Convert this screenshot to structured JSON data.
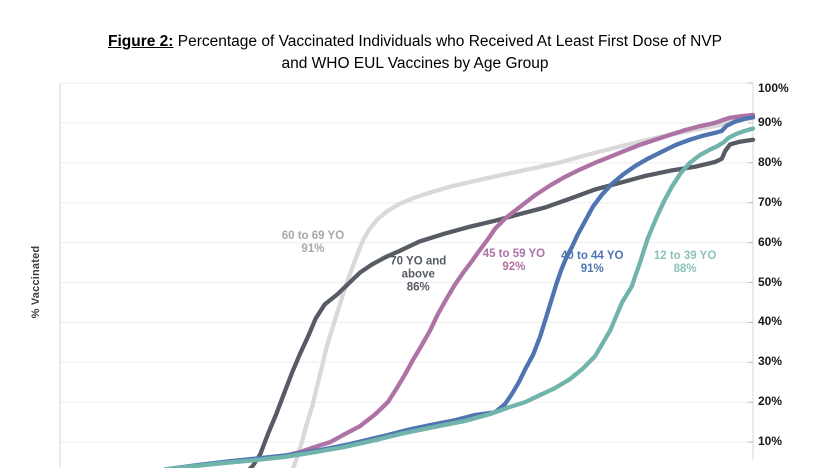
{
  "figure": {
    "label": "Figure 2:",
    "title_rest": " Percentage of Vaccinated Individuals who Received At Least First Dose of NVP",
    "title_line2": "and WHO EUL Vaccines by Age Group"
  },
  "y_axis": {
    "label": "% Vaccinated",
    "ticks": [
      {
        "label": "100%",
        "value": 100
      },
      {
        "label": "90%",
        "value": 90
      },
      {
        "label": "80%",
        "value": 80
      },
      {
        "label": "70%",
        "value": 70
      },
      {
        "label": "60%",
        "value": 60
      },
      {
        "label": "50%",
        "value": 50
      },
      {
        "label": "40%",
        "value": 40
      },
      {
        "label": "30%",
        "value": 30
      },
      {
        "label": "20%",
        "value": 20
      },
      {
        "label": "10%",
        "value": 10
      }
    ]
  },
  "colors": {
    "grid": "#ededed",
    "axis": "#d4d4d4",
    "tick_text": "#17181a",
    "series_70_plus": "#565b64",
    "series_60_69": "#d9d9d9",
    "series_45_59": "#ae72a5",
    "series_40_44": "#4f75b0",
    "series_12_39": "#70b4ab",
    "anno_60_69_text": "#a8a8a8"
  },
  "chart_data": {
    "type": "line",
    "title": "Figure 2: Percentage of Vaccinated Individuals who Received At Least First Dose of NVP and WHO EUL Vaccines by Age Group",
    "xlabel": "",
    "ylabel": "% Vaccinated",
    "ylim": [
      0,
      100
    ],
    "x_unit": "percent of timeline (x-axis labels cropped out of view)",
    "grid": "horizontal only",
    "legend": "inline annotations next to each curve",
    "series": [
      {
        "id": "s60_69",
        "name": "60 to 69 YO",
        "final_value": "91%",
        "color": "#d9d9d9",
        "annotation": {
          "lines": "60 to 69 YO\n91%",
          "x_pct": 36.5,
          "y_val": 60,
          "text_color": "#a8a8a8"
        },
        "points": [
          [
            33.6,
            3.3
          ],
          [
            34.2,
            6
          ],
          [
            34.9,
            10
          ],
          [
            35.6,
            14.5
          ],
          [
            36.4,
            19
          ],
          [
            37.1,
            24
          ],
          [
            37.8,
            29
          ],
          [
            38.5,
            34
          ],
          [
            39.4,
            39
          ],
          [
            40.3,
            44
          ],
          [
            41.1,
            48.5
          ],
          [
            42.0,
            53
          ],
          [
            42.9,
            57
          ],
          [
            43.7,
            60.5
          ],
          [
            44.7,
            63.5
          ],
          [
            45.9,
            66
          ],
          [
            47.3,
            68
          ],
          [
            49.1,
            69.8
          ],
          [
            51.2,
            71.3
          ],
          [
            53.7,
            72.7
          ],
          [
            56.3,
            74
          ],
          [
            59.2,
            75.2
          ],
          [
            62.0,
            76.3
          ],
          [
            65.2,
            77.5
          ],
          [
            68.5,
            78.7
          ],
          [
            71.9,
            80
          ],
          [
            75.0,
            81.5
          ],
          [
            77.9,
            82.8
          ],
          [
            81.1,
            84.2
          ],
          [
            84.4,
            85.6
          ],
          [
            87.6,
            86.9
          ],
          [
            90.9,
            88
          ],
          [
            93.8,
            89
          ],
          [
            95.5,
            89.5
          ],
          [
            96.4,
            90.3
          ],
          [
            98.1,
            90.8
          ],
          [
            100,
            91.2
          ]
        ]
      },
      {
        "id": "s70_plus",
        "name": "70 YO and above",
        "final_value": "86%",
        "color": "#565b64",
        "annotation": {
          "lines": "70 YO and\nabove\n86%",
          "x_pct": 51.7,
          "y_val": 52,
          "text_color": "#565b64"
        },
        "points": [
          [
            27.4,
            3.3
          ],
          [
            27.8,
            4
          ],
          [
            28.9,
            7
          ],
          [
            30.0,
            12
          ],
          [
            31.2,
            17
          ],
          [
            32.3,
            22
          ],
          [
            33.5,
            27.5
          ],
          [
            34.6,
            32
          ],
          [
            35.8,
            36.5
          ],
          [
            36.9,
            41
          ],
          [
            38.2,
            44.5
          ],
          [
            40.0,
            47
          ],
          [
            41.8,
            50
          ],
          [
            43.3,
            52.5
          ],
          [
            45.0,
            54.5
          ],
          [
            46.9,
            56.3
          ],
          [
            49.1,
            58
          ],
          [
            51.9,
            60.3
          ],
          [
            55.6,
            62.3
          ],
          [
            59.2,
            64
          ],
          [
            62.8,
            65.5
          ],
          [
            66.4,
            67.2
          ],
          [
            70.0,
            68.8
          ],
          [
            73.6,
            71
          ],
          [
            77.2,
            73.3
          ],
          [
            80.8,
            75
          ],
          [
            84.4,
            76.7
          ],
          [
            88.0,
            78
          ],
          [
            91.6,
            79
          ],
          [
            94.5,
            80.2
          ],
          [
            95.5,
            81
          ],
          [
            96.0,
            83
          ],
          [
            96.7,
            84.6
          ],
          [
            98.1,
            85.3
          ],
          [
            100,
            85.8
          ]
        ]
      },
      {
        "id": "s45_59",
        "name": "45 to 59 YO",
        "final_value": "92%",
        "color": "#ae72a5",
        "annotation": {
          "lines": "45 to 59 YO\n92%",
          "x_pct": 65.5,
          "y_val": 55.5,
          "text_color": "#ae72a5"
        },
        "points": [
          [
            16.6,
            3.5
          ],
          [
            20.2,
            4.2
          ],
          [
            23.8,
            4.8
          ],
          [
            27.4,
            5.4
          ],
          [
            30.3,
            6
          ],
          [
            32.5,
            6.6
          ],
          [
            34.6,
            7.5
          ],
          [
            36.8,
            8.8
          ],
          [
            39.0,
            10
          ],
          [
            41.1,
            12
          ],
          [
            43.3,
            14
          ],
          [
            45.5,
            17
          ],
          [
            47.3,
            20
          ],
          [
            48.6,
            23.5
          ],
          [
            49.8,
            27
          ],
          [
            50.9,
            30.5
          ],
          [
            52.1,
            34
          ],
          [
            53.4,
            38
          ],
          [
            54.5,
            42
          ],
          [
            55.8,
            46
          ],
          [
            57.0,
            49.5
          ],
          [
            58.2,
            52.5
          ],
          [
            59.5,
            55.5
          ],
          [
            60.3,
            57.5
          ],
          [
            61.8,
            61
          ],
          [
            62.8,
            63.5
          ],
          [
            64.2,
            66
          ],
          [
            66.4,
            69
          ],
          [
            68.5,
            71.8
          ],
          [
            70.7,
            74.3
          ],
          [
            72.9,
            76.5
          ],
          [
            75.0,
            78.3
          ],
          [
            77.2,
            80
          ],
          [
            79.4,
            81.5
          ],
          [
            81.5,
            83
          ],
          [
            83.7,
            84.5
          ],
          [
            85.9,
            85.8
          ],
          [
            88.0,
            87
          ],
          [
            90.2,
            88.2
          ],
          [
            92.4,
            89.2
          ],
          [
            94.5,
            90
          ],
          [
            95.8,
            90.8
          ],
          [
            96.7,
            91.3
          ],
          [
            98.4,
            91.7
          ],
          [
            100,
            92
          ]
        ]
      },
      {
        "id": "s40_44",
        "name": "40 to 44 YO",
        "final_value": "91%",
        "color": "#4f75b0",
        "annotation": {
          "lines": "40 to 44 YO\n91%",
          "x_pct": 76.8,
          "y_val": 55,
          "text_color": "#4f75b0"
        },
        "points": [
          [
            15.9,
            3.3
          ],
          [
            20.2,
            4.3
          ],
          [
            24.5,
            5.2
          ],
          [
            28.9,
            6
          ],
          [
            33.2,
            6.8
          ],
          [
            37.5,
            8
          ],
          [
            41.8,
            9.5
          ],
          [
            46.2,
            11.3
          ],
          [
            50.5,
            13.2
          ],
          [
            54.1,
            14.5
          ],
          [
            57.0,
            15.5
          ],
          [
            59.9,
            16.8
          ],
          [
            62.8,
            17.5
          ],
          [
            64.2,
            19.5
          ],
          [
            65.2,
            22
          ],
          [
            66.2,
            25
          ],
          [
            67.2,
            28.5
          ],
          [
            68.3,
            32
          ],
          [
            69.3,
            36.5
          ],
          [
            70.1,
            41
          ],
          [
            70.9,
            45.5
          ],
          [
            71.6,
            49.5
          ],
          [
            72.3,
            53
          ],
          [
            73.0,
            56
          ],
          [
            73.9,
            59
          ],
          [
            74.7,
            62
          ],
          [
            75.8,
            65.5
          ],
          [
            76.9,
            69
          ],
          [
            78.2,
            72
          ],
          [
            79.7,
            74.8
          ],
          [
            81.2,
            77
          ],
          [
            83.0,
            79.2
          ],
          [
            84.8,
            81
          ],
          [
            86.9,
            82.8
          ],
          [
            88.9,
            84.5
          ],
          [
            90.9,
            85.8
          ],
          [
            92.8,
            86.8
          ],
          [
            94.5,
            87.5
          ],
          [
            95.5,
            88
          ],
          [
            96.2,
            89.3
          ],
          [
            97.4,
            90.3
          ],
          [
            98.8,
            91
          ],
          [
            100,
            91.4
          ]
        ]
      },
      {
        "id": "s12_39",
        "name": "12 to 39 YO",
        "final_value": "88%",
        "color": "#70b4ab",
        "annotation": {
          "lines": "12 to 39 YO\n88%",
          "x_pct": 90.2,
          "y_val": 55,
          "text_color": "#8cc2bb"
        },
        "points": [
          [
            15.2,
            3.2
          ],
          [
            19.5,
            4
          ],
          [
            23.8,
            4.8
          ],
          [
            28.1,
            5.5
          ],
          [
            32.5,
            6.3
          ],
          [
            36.8,
            7.5
          ],
          [
            41.1,
            8.8
          ],
          [
            45.5,
            10.5
          ],
          [
            49.8,
            12.3
          ],
          [
            54.1,
            13.8
          ],
          [
            58.4,
            15.3
          ],
          [
            62.0,
            17
          ],
          [
            64.9,
            18.8
          ],
          [
            67.1,
            20
          ],
          [
            69.3,
            21.8
          ],
          [
            71.4,
            23.5
          ],
          [
            73.6,
            25.8
          ],
          [
            75.5,
            28.5
          ],
          [
            77.2,
            31.5
          ],
          [
            79.4,
            38
          ],
          [
            81.1,
            45
          ],
          [
            82.5,
            49
          ],
          [
            83.7,
            55
          ],
          [
            84.8,
            61
          ],
          [
            86.0,
            66
          ],
          [
            87.2,
            70.5
          ],
          [
            88.3,
            74
          ],
          [
            89.6,
            77.5
          ],
          [
            90.9,
            80
          ],
          [
            92.4,
            82
          ],
          [
            93.8,
            83.3
          ],
          [
            94.9,
            84.2
          ],
          [
            95.8,
            85.2
          ],
          [
            96.4,
            86.2
          ],
          [
            97.5,
            87.2
          ],
          [
            98.8,
            88
          ],
          [
            100,
            88.6
          ]
        ]
      }
    ]
  }
}
